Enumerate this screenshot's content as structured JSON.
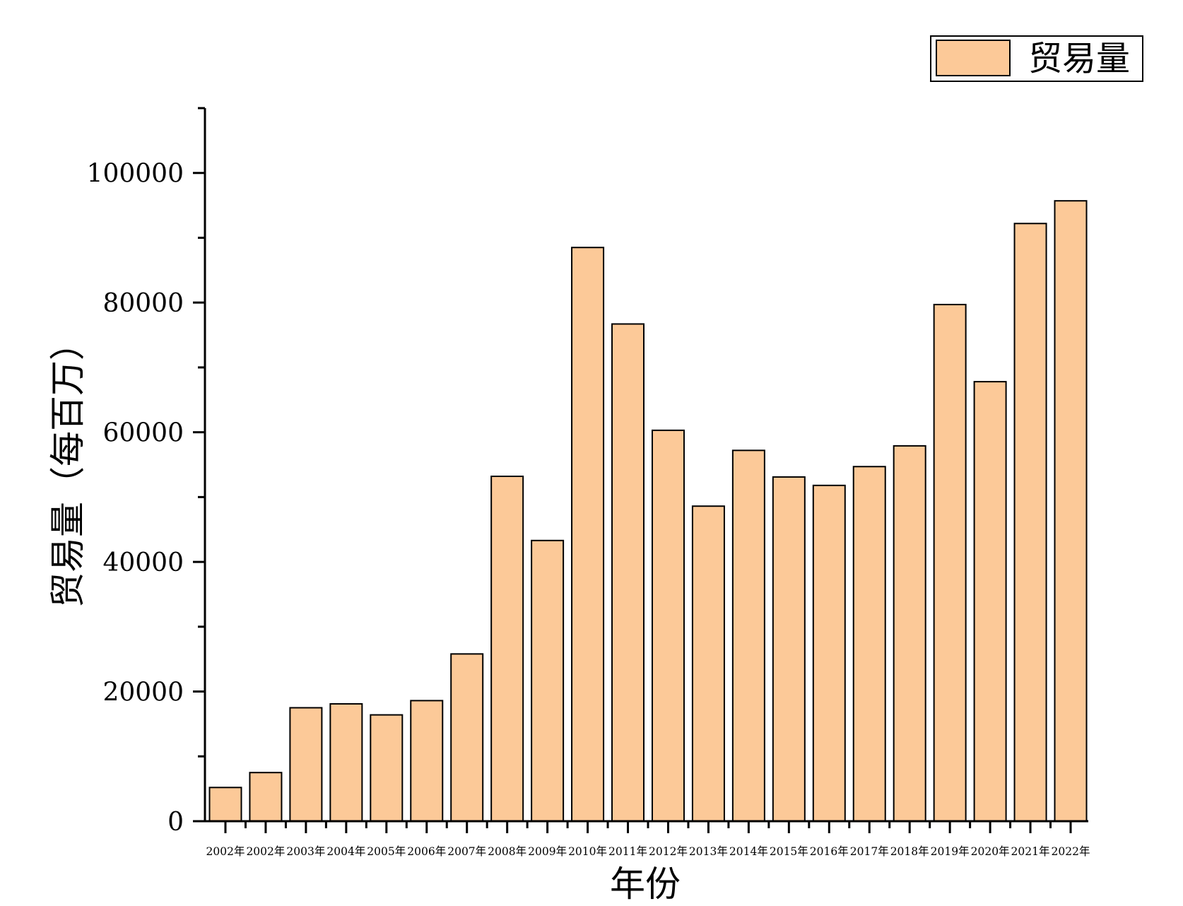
{
  "chart_data": {
    "type": "bar",
    "title": "",
    "xlabel": "年份",
    "ylabel": "贸易量（每百万）",
    "categories": [
      "2002年",
      "2002年",
      "2003年",
      "2004年",
      "2005年",
      "2006年",
      "2007年",
      "2008年",
      "2009年",
      "2010年",
      "2011年",
      "2012年",
      "2013年",
      "2014年",
      "2015年",
      "2016年",
      "2017年",
      "2018年",
      "2019年",
      "2020年",
      "2021年",
      "2022年"
    ],
    "series": [
      {
        "name": "贸易量",
        "values": [
          5200,
          7500,
          17500,
          18100,
          16400,
          18600,
          25800,
          53200,
          43300,
          88500,
          76700,
          60300,
          48600,
          57200,
          53100,
          51800,
          54700,
          57900,
          79700,
          67800,
          92200,
          95700
        ]
      }
    ],
    "ylim": [
      0,
      110000
    ],
    "yticks": [
      0,
      20000,
      40000,
      60000,
      80000,
      100000
    ],
    "ytick_labels": [
      "0",
      "20000",
      "40000",
      "60000",
      "80000",
      "100000"
    ],
    "grid": false,
    "legend_position": "top-right",
    "colors": {
      "bar_fill": "#fcc998",
      "bar_stroke": "#000000"
    }
  }
}
